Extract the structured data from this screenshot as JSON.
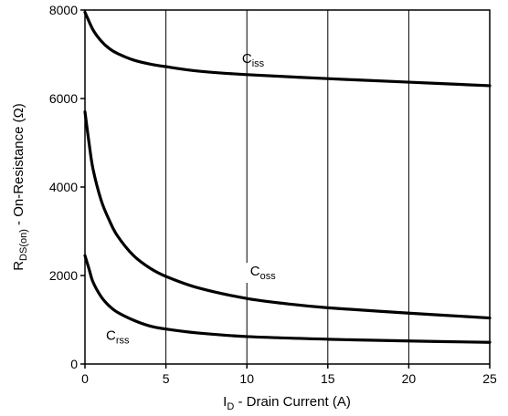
{
  "chart_data": {
    "type": "line",
    "xlabel": {
      "main": "I",
      "sub": "D",
      "rest": " - Drain Current (A)"
    },
    "ylabel": {
      "main": "R",
      "sub": "DS(on)",
      "rest": " - On-Resistance (Ω)"
    },
    "xlim": [
      0,
      25
    ],
    "ylim": [
      0,
      8000
    ],
    "x_ticks": [
      0,
      5,
      10,
      15,
      20,
      25
    ],
    "y_ticks": [
      0,
      2000,
      4000,
      6000,
      8000
    ],
    "x_tick_labels": [
      "0",
      "5",
      "10",
      "15",
      "20",
      "25"
    ],
    "y_tick_labels": [
      "0",
      "2000",
      "4000",
      "6000",
      "8000"
    ],
    "grid": "vertical",
    "series": [
      {
        "name": "Ciss",
        "label_main": "C",
        "label_sub": "iss",
        "x": [
          0,
          0.5,
          1,
          1.5,
          2,
          3,
          4,
          5,
          7,
          10,
          15,
          20,
          25
        ],
        "y": [
          7950,
          7550,
          7300,
          7130,
          7020,
          6870,
          6780,
          6720,
          6620,
          6540,
          6450,
          6370,
          6290
        ]
      },
      {
        "name": "Coss",
        "label_main": "C",
        "label_sub": "oss",
        "x": [
          0,
          0.25,
          0.5,
          1,
          1.5,
          2,
          3,
          4,
          5,
          7,
          10,
          12.5,
          15,
          20,
          25
        ],
        "y": [
          5700,
          5000,
          4400,
          3700,
          3250,
          2900,
          2450,
          2170,
          1980,
          1720,
          1480,
          1360,
          1270,
          1150,
          1040
        ]
      },
      {
        "name": "Crss",
        "label_main": "C",
        "label_sub": "rss",
        "x": [
          0,
          0.25,
          0.5,
          1,
          1.5,
          2,
          3,
          4,
          5,
          7,
          10,
          15,
          20,
          25
        ],
        "y": [
          2450,
          2150,
          1850,
          1520,
          1310,
          1170,
          990,
          860,
          790,
          700,
          620,
          560,
          520,
          490
        ]
      }
    ]
  }
}
